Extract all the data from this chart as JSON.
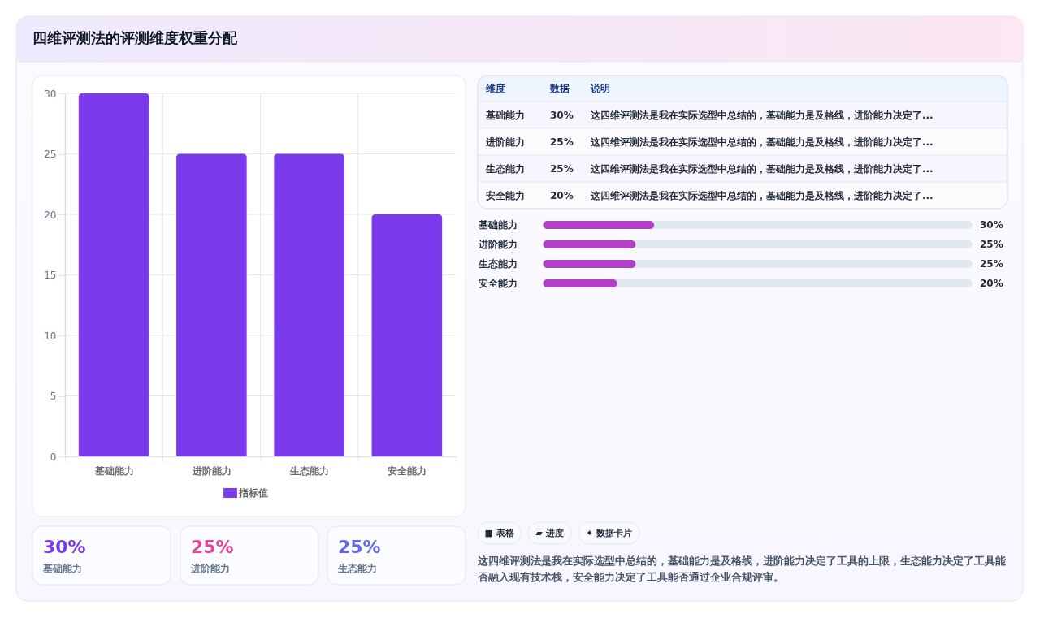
{
  "chart_data": [
    {
      "type": "bar",
      "title": "四维评测法的评测维度权重分配",
      "categories": [
        "基础能力",
        "进阶能力",
        "生态能力",
        "安全能力"
      ],
      "series": [
        {
          "name": "指标值",
          "color": "#7c3aed",
          "values": [
            30,
            25,
            25,
            20
          ]
        }
      ],
      "ylim": [
        0,
        30
      ],
      "yticks": [
        0,
        5,
        10,
        15,
        20,
        25,
        30
      ],
      "grid": true,
      "legend": "bottom"
    },
    {
      "type": "other",
      "categories": [
        "基础能力",
        "进阶能力",
        "生态能力",
        "安全能力"
      ],
      "value_labels": [
        "30%",
        "25%",
        "25%",
        "20%"
      ],
      "annotations": [
        "维度",
        "数据",
        "说明",
        "这四维评测法是我在实际选型中总结的，基础能力是及格线，进阶能力决定了...",
        "这四维评测法是我在实际选型中总结的，基础能力是及格线，进阶能力决定了...",
        "这四维评测法是我在实际选型中总结的，基础能力是及格线，进阶能力决定了...",
        "这四维评测法是我在实际选型中总结的，基础能力是及格线，进阶能力决定了..."
      ]
    },
    {
      "type": "bar",
      "orientation": "horizontal",
      "categories": [
        "基础能力",
        "进阶能力",
        "生态能力",
        "安全能力"
      ],
      "values": [
        30,
        25,
        25,
        20
      ],
      "color": "#b340c4",
      "value_labels": [
        "30%",
        "25%",
        "25%",
        "20%"
      ],
      "xlim": [
        0,
        116
      ],
      "tick_labels": "y"
    },
    {
      "type": "other",
      "categories": [
        "基础能力",
        "进阶能力",
        "生态能力"
      ],
      "value_labels": [
        "30%",
        "25%",
        "25%"
      ]
    },
    {
      "type": "other",
      "annotations": [
        "■ 表格",
        "▰ 进度",
        "✦ 数据卡片",
        "这四维评测法是我在实际选型中总结的，基础能力是及格线，进阶能力决定了工具的上限，生态能力决定了工具能否融入现有技术栈，安全能力决定了工具能否通过企业合规评审。"
      ]
    }
  ]
}
